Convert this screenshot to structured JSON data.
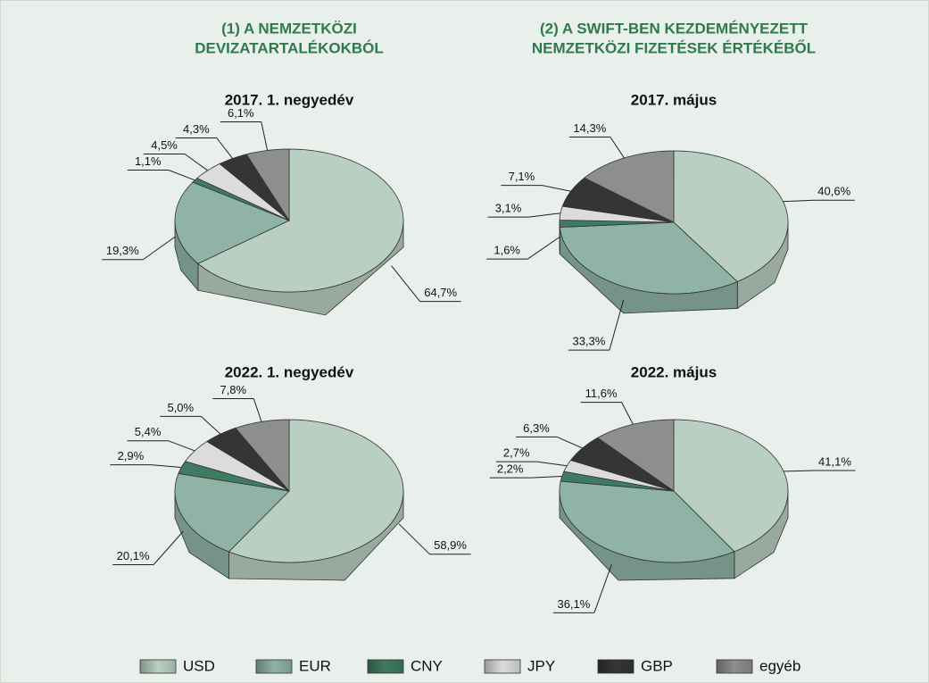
{
  "column_titles": [
    [
      "(1) A NEMZETKÖZI",
      "DEVIZATARTALÉKOKBÓL"
    ],
    [
      "(2) A SWIFT-BEN KEZDEMÉNYEZETT",
      "NEMZETKÖZI FIZETÉSEK ÉRTÉKÉBŐL"
    ]
  ],
  "chart_data": [
    {
      "type": "pie",
      "title": "2017. 1. negyedév",
      "categories": [
        "USD",
        "EUR",
        "CNY",
        "JPY",
        "GBP",
        "egyéb"
      ],
      "colors": [
        "#b9cfc3",
        "#8fb3a4",
        "#3f7a63",
        "#dcdcdc",
        "#353535",
        "#8e8e8e"
      ],
      "values": [
        64.7,
        19.3,
        1.1,
        4.5,
        4.3,
        6.1
      ],
      "value_labels": [
        "64,7%",
        "19,3%",
        "1,1%",
        "4,5%",
        "4,3%",
        "6,1%"
      ]
    },
    {
      "type": "pie",
      "title": "2017. május",
      "categories": [
        "USD",
        "EUR",
        "CNY",
        "JPY",
        "GBP",
        "egyéb"
      ],
      "colors": [
        "#b9cfc3",
        "#8fb3a4",
        "#3f7a63",
        "#dcdcdc",
        "#353535",
        "#8e8e8e"
      ],
      "values": [
        40.6,
        33.3,
        1.6,
        3.1,
        7.1,
        14.3
      ],
      "value_labels": [
        "40,6%",
        "33,3%",
        "1,6%",
        "3,1%",
        "7,1%",
        "14,3%"
      ]
    },
    {
      "type": "pie",
      "title": "2022. 1. negyedév",
      "categories": [
        "USD",
        "EUR",
        "CNY",
        "JPY",
        "GBP",
        "egyéb"
      ],
      "colors": [
        "#b9cfc3",
        "#8fb3a4",
        "#3f7a63",
        "#dcdcdc",
        "#353535",
        "#8e8e8e"
      ],
      "values": [
        58.9,
        20.1,
        2.9,
        5.4,
        5.0,
        7.8
      ],
      "value_labels": [
        "58,9%",
        "20,1%",
        "2,9%",
        "5,4%",
        "5,0%",
        "7,8%"
      ]
    },
    {
      "type": "pie",
      "title": "2022. május",
      "categories": [
        "USD",
        "EUR",
        "CNY",
        "JPY",
        "GBP",
        "egyéb"
      ],
      "colors": [
        "#b9cfc3",
        "#8fb3a4",
        "#3f7a63",
        "#dcdcdc",
        "#353535",
        "#8e8e8e"
      ],
      "values": [
        41.1,
        36.1,
        2.2,
        2.7,
        6.3,
        11.6
      ],
      "value_labels": [
        "41,1%",
        "36,1%",
        "2,2%",
        "2,7%",
        "6,3%",
        "11,6%"
      ]
    }
  ]
}
